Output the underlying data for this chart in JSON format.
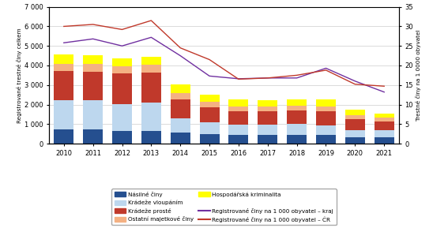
{
  "years": [
    2010,
    2011,
    2012,
    2013,
    2014,
    2015,
    2016,
    2017,
    2018,
    2019,
    2020,
    2021
  ],
  "nasilne_ciny": [
    720,
    740,
    660,
    660,
    560,
    490,
    450,
    460,
    450,
    440,
    330,
    330
  ],
  "kradeze_vloupani": [
    1500,
    1470,
    1380,
    1440,
    750,
    590,
    510,
    530,
    550,
    480,
    360,
    370
  ],
  "kradeze_proste": [
    1500,
    1480,
    1540,
    1540,
    960,
    770,
    680,
    680,
    680,
    730,
    560,
    430
  ],
  "ostatni_majetkove": [
    380,
    400,
    370,
    390,
    330,
    290,
    270,
    250,
    270,
    260,
    220,
    210
  ],
  "hospodarska_kriminalita": [
    450,
    440,
    430,
    430,
    420,
    360,
    340,
    320,
    320,
    340,
    250,
    180
  ],
  "line_kraj": [
    25.8,
    26.8,
    25.0,
    27.2,
    22.5,
    17.3,
    16.6,
    16.8,
    16.8,
    19.3,
    16.0,
    13.2
  ],
  "line_cr": [
    30.0,
    30.5,
    29.2,
    31.5,
    24.5,
    21.5,
    16.5,
    16.8,
    17.5,
    18.8,
    15.2,
    14.7
  ],
  "colors": {
    "nasilne": "#254f8f",
    "kradeze_vloupani": "#bdd7ee",
    "kradeze_proste": "#c0392b",
    "ostatni_majetkove": "#f4b183",
    "hospodarska": "#ffff00",
    "line_kraj": "#7030a0",
    "line_cr": "#c0392b"
  },
  "ylim_left": [
    0,
    7000
  ],
  "ylim_right": [
    0,
    35
  ],
  "yticks_left": [
    0,
    1000,
    2000,
    3000,
    4000,
    5000,
    6000,
    7000
  ],
  "yticks_right": [
    0,
    5,
    10,
    15,
    20,
    25,
    30,
    35
  ],
  "ytick_labels_left": [
    "0",
    "1 000",
    "2 000",
    "3 000",
    "4 000",
    "5 000",
    "6 000",
    "7 000"
  ],
  "ytick_labels_right": [
    "0",
    "5",
    "10",
    "15",
    "20",
    "25",
    "30",
    "35"
  ],
  "ylabel_left": "Registrované trestné činy celkem",
  "ylabel_right": "Trestné činy na 1 0000 obyvatel",
  "background_color": "#ffffff"
}
